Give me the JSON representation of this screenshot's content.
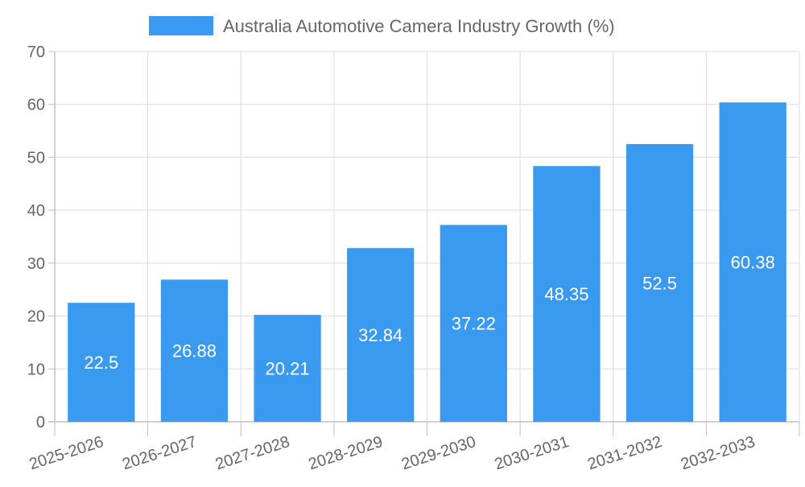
{
  "chart_data": {
    "type": "bar",
    "title": "",
    "legend": "Australia Automotive Camera Industry Growth (%)",
    "legend_position": "top-center",
    "categories": [
      "2025-2026",
      "2026-2027",
      "2027-2028",
      "2028-2029",
      "2029-2030",
      "2030-2031",
      "2031-2032",
      "2032-2033"
    ],
    "values": [
      22.5,
      26.88,
      20.21,
      32.84,
      37.22,
      48.35,
      52.5,
      60.38
    ],
    "value_labels": [
      "22.5",
      "26.88",
      "20.21",
      "32.84",
      "37.22",
      "48.35",
      "52.5",
      "60.38"
    ],
    "xlabel": "",
    "ylabel": "",
    "ylim": [
      0,
      70
    ],
    "yticks": [
      "0",
      "10",
      "20",
      "30",
      "40",
      "50",
      "60",
      "70"
    ],
    "grid": true,
    "bar_color": "#3a9af0"
  }
}
